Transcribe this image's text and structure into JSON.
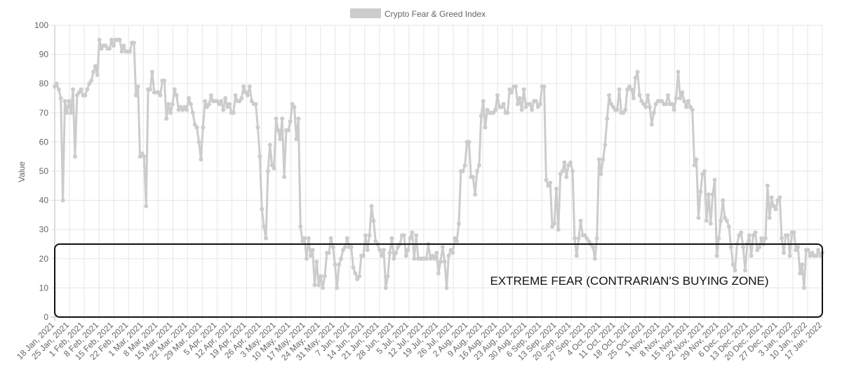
{
  "chart_data": {
    "type": "line",
    "legend": {
      "label": "Crypto Fear & Greed Index",
      "position": "top",
      "swatch_color": "#cccccc"
    },
    "ylabel": "Value",
    "ylim": [
      0,
      100
    ],
    "yticks": [
      0,
      10,
      20,
      30,
      40,
      50,
      60,
      70,
      80,
      90,
      100
    ],
    "grid": true,
    "line_color": "#cccccc",
    "x_start": "2021-01-18",
    "x_end": "2022-01-17",
    "x_tick_labels": [
      "18 Jan, 2021",
      "25 Jan, 2021",
      "1 Feb, 2021",
      "8 Feb, 2021",
      "15 Feb, 2021",
      "22 Feb, 2021",
      "1 Mar, 2021",
      "8 Mar, 2021",
      "15 Mar, 2021",
      "22 Mar, 2021",
      "29 Mar, 2021",
      "5 Apr, 2021",
      "12 Apr, 2021",
      "19 Apr, 2021",
      "26 Apr, 2021",
      "3 May, 2021",
      "10 May, 2021",
      "17 May, 2021",
      "24 May, 2021",
      "31 May, 2021",
      "7 Jun, 2021",
      "14 Jun, 2021",
      "21 Jun, 2021",
      "28 Jun, 2021",
      "5 Jul, 2021",
      "12 Jul, 2021",
      "19 Jul, 2021",
      "26 Jul, 2021",
      "2 Aug, 2021",
      "9 Aug, 2021",
      "16 Aug, 2021",
      "23 Aug, 2021",
      "30 Aug, 2021",
      "6 Sep, 2021",
      "13 Sep, 2021",
      "20 Sep, 2021",
      "27 Sep, 2021",
      "4 Oct, 2021",
      "11 Oct, 2021",
      "18 Oct, 2021",
      "25 Oct, 2021",
      "1 Nov, 2021",
      "8 Nov, 2021",
      "15 Nov, 2021",
      "22 Nov, 2021",
      "29 Nov, 2021",
      "6 Dec, 2021",
      "13 Dec, 2021",
      "20 Dec, 2021",
      "27 Dec, 2021",
      "3 Jan, 2022",
      "10 Jan, 2022",
      "17 Jan, 2022"
    ],
    "values": [
      79,
      80,
      78,
      75,
      40,
      74,
      70,
      74,
      70,
      78,
      55,
      76,
      77,
      78,
      76,
      76,
      78,
      80,
      81,
      84,
      86,
      83,
      95,
      92,
      93,
      93,
      92,
      92,
      95,
      93,
      95,
      95,
      95,
      91,
      93,
      91,
      91,
      91,
      94,
      94,
      76,
      79,
      55,
      56,
      55,
      38,
      78,
      78,
      84,
      77,
      77,
      77,
      76,
      81,
      81,
      68,
      73,
      70,
      73,
      78,
      76,
      71,
      72,
      71,
      72,
      71,
      75,
      73,
      70,
      66,
      65,
      60,
      54,
      65,
      74,
      72,
      73,
      76,
      74,
      74,
      74,
      73,
      74,
      71,
      75,
      72,
      73,
      70,
      70,
      76,
      74,
      74,
      75,
      79,
      77,
      76,
      79,
      74,
      73,
      73,
      65,
      55,
      37,
      31,
      27,
      50,
      59,
      52,
      51,
      68,
      64,
      61,
      68,
      48,
      64,
      64,
      67,
      73,
      72,
      61,
      68,
      31,
      26,
      27,
      20,
      27,
      21,
      23,
      11,
      19,
      11,
      14,
      10,
      14,
      22,
      22,
      27,
      24,
      18,
      10,
      18,
      20,
      23,
      24,
      27,
      24,
      24,
      17,
      15,
      13,
      14,
      21,
      21,
      28,
      23,
      28,
      38,
      33,
      26,
      25,
      23,
      21,
      23,
      10,
      14,
      22,
      27,
      20,
      22,
      24,
      25,
      28,
      28,
      21,
      23,
      27,
      29,
      20,
      28,
      20,
      20,
      20,
      20,
      20,
      25,
      20,
      21,
      20,
      22,
      15,
      19,
      24,
      19,
      10,
      21,
      23,
      22,
      27,
      26,
      32,
      50,
      50,
      52,
      60,
      60,
      48,
      48,
      42,
      50,
      52,
      69,
      74,
      65,
      71,
      70,
      70,
      70,
      71,
      76,
      72,
      72,
      73,
      70,
      70,
      78,
      77,
      79,
      79,
      73,
      75,
      71,
      78,
      72,
      73,
      73,
      71,
      74,
      74,
      72,
      73,
      79,
      79,
      47,
      45,
      46,
      31,
      32,
      44,
      30,
      49,
      50,
      53,
      48,
      52,
      53,
      50,
      27,
      21,
      27,
      33,
      28,
      28,
      27,
      26,
      25,
      24,
      20,
      27,
      54,
      49,
      54,
      59,
      68,
      76,
      73,
      72,
      71,
      71,
      78,
      70,
      70,
      71,
      78,
      79,
      78,
      75,
      82,
      84,
      76,
      74,
      73,
      72,
      76,
      72,
      66,
      70,
      73,
      74,
      74,
      74,
      73,
      73,
      76,
      73,
      73,
      71,
      75,
      84,
      75,
      77,
      74,
      72,
      74,
      72,
      71,
      52,
      54,
      34,
      43,
      49,
      50,
      33,
      42,
      32,
      42,
      47,
      21,
      27,
      33,
      40,
      34,
      33,
      31,
      24,
      18,
      16,
      25,
      28,
      29,
      24,
      16,
      25,
      28,
      21,
      28,
      29,
      23,
      24,
      27,
      25,
      27,
      45,
      34,
      41,
      38,
      37,
      40,
      41,
      27,
      22,
      28,
      28,
      21,
      29,
      29,
      23,
      24,
      15,
      18,
      10,
      23,
      23,
      21,
      22,
      21,
      21,
      23,
      21,
      22
    ],
    "annotations": [
      {
        "type": "box",
        "y_range": [
          0,
          25
        ],
        "label": "EXTREME FEAR (CONTRARIAN'S BUYING ZONE)"
      }
    ]
  }
}
